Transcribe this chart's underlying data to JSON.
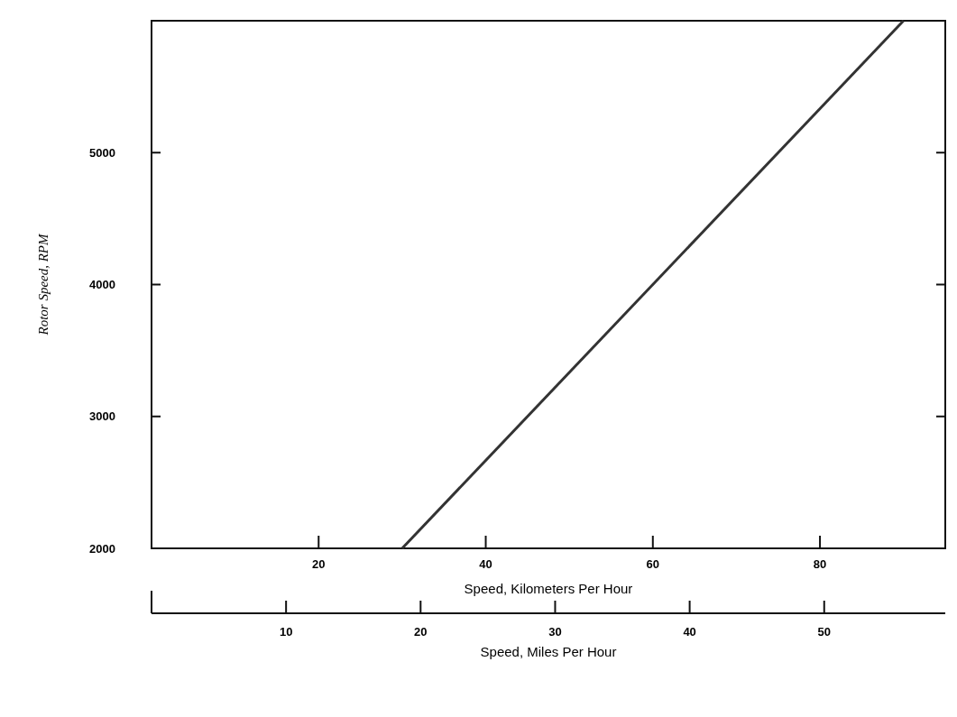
{
  "chart_data": {
    "type": "line",
    "xlabel": "Speed, Kilometers Per Hour",
    "ylabel": "Rotor Speed, RPM",
    "x2label": "Speed, Miles Per Hour",
    "xlim": [
      0,
      95
    ],
    "xticks": [
      20,
      40,
      60,
      80
    ],
    "ylim": [
      2000,
      6000
    ],
    "yticks": [
      2000,
      3000,
      4000,
      5000
    ],
    "x2lim": [
      0,
      59
    ],
    "x2ticks": [
      10,
      20,
      30,
      40,
      50
    ],
    "series": [
      {
        "color": "#333333",
        "x": [
          30,
          90
        ],
        "values": [
          2000,
          6000
        ]
      }
    ]
  }
}
